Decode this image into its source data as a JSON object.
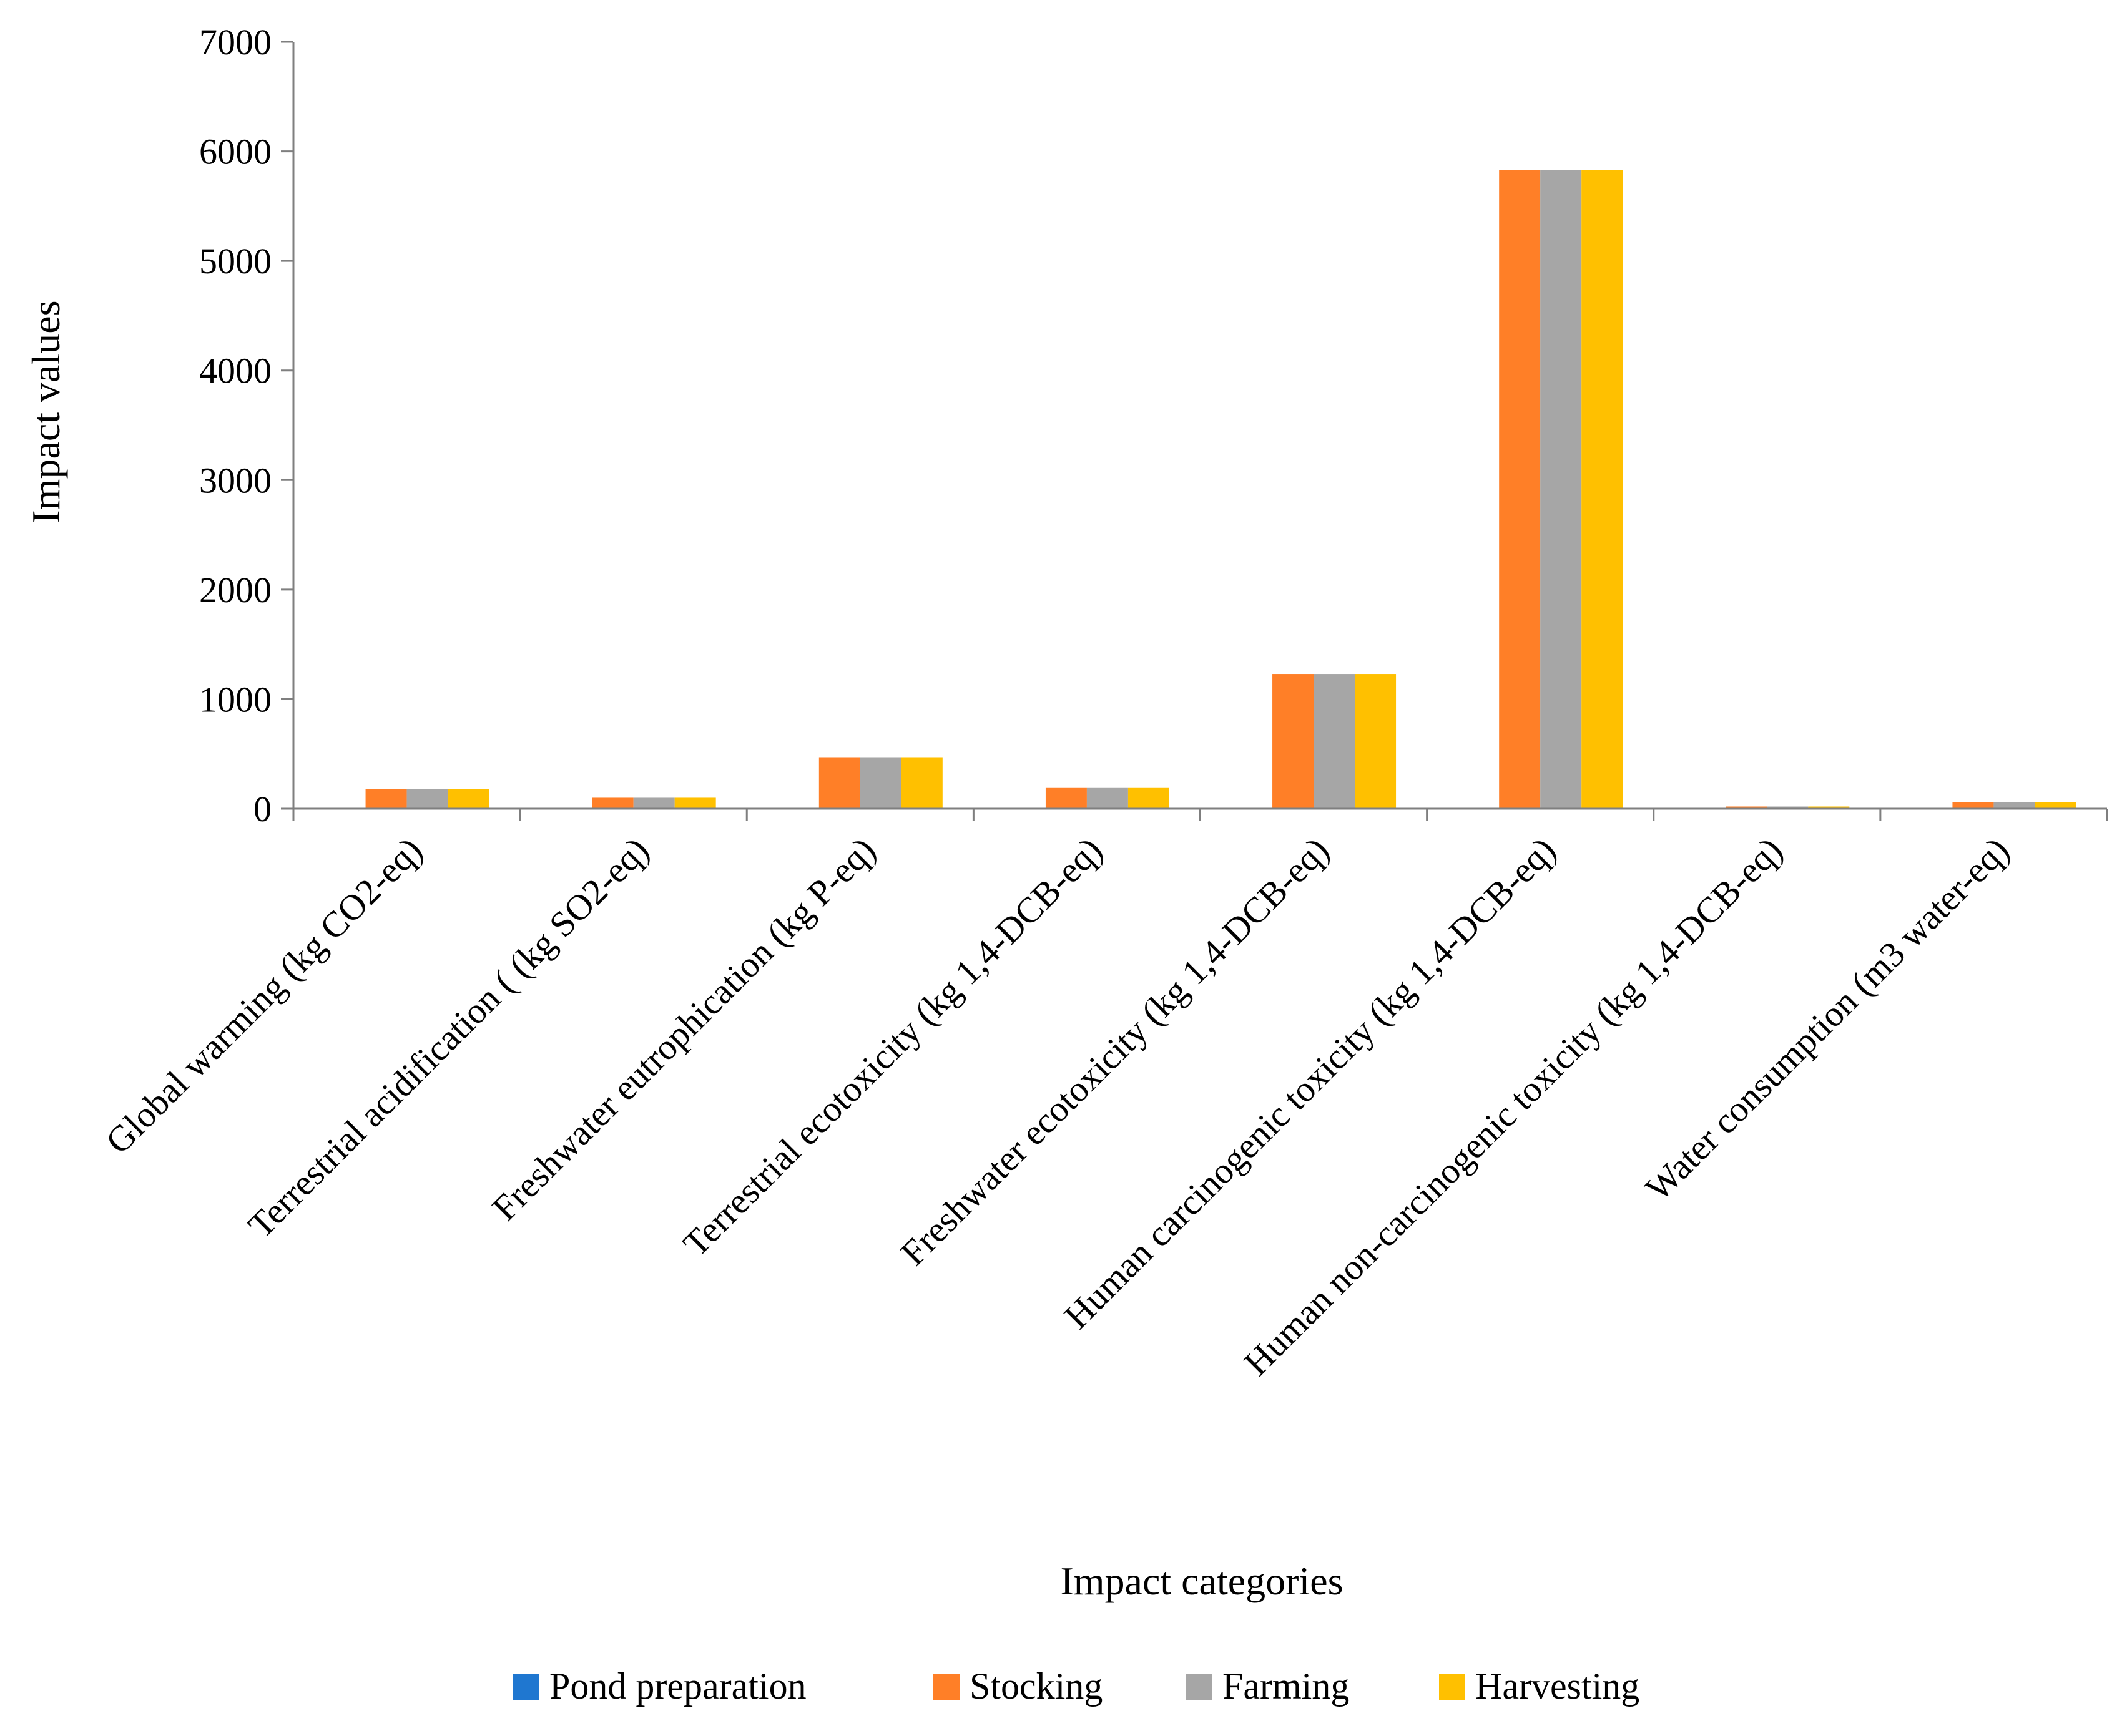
{
  "chart_data": {
    "type": "bar",
    "title": "",
    "xlabel": "Impact categories",
    "ylabel": "Impact values",
    "ylim": [
      0,
      7000
    ],
    "yticks": [
      0,
      1000,
      2000,
      3000,
      4000,
      5000,
      6000,
      7000
    ],
    "grid": false,
    "legend_position": "bottom",
    "categories": [
      "Global warming (kg CO2-eq)",
      "Terrestrial acidification ( (kg SO2-eq)",
      "Freshwater eutrophication  (kg P-eq)",
      "Terrestrial ecotoxicity  (kg 1,4-DCB-eq)",
      "Freshwater ecotoxicity  (kg 1,4-DCB-eq)",
      "Human carcinogenic toxicity  (kg 1,4-DCB-eq)",
      "Human non-carcinogenic toxicity (kg 1,4-DCB-eq)",
      "Water consumption (m3 water-eq)"
    ],
    "series": [
      {
        "name": "Pond preparation",
        "color": "#1f77d0",
        "values": [
          0,
          0,
          0,
          0,
          0,
          0,
          0,
          0
        ]
      },
      {
        "name": "Stocking",
        "color": "#ff7f27",
        "values": [
          180,
          100,
          470,
          195,
          1230,
          5830,
          20,
          60
        ]
      },
      {
        "name": "Farming",
        "color": "#a6a6a6",
        "values": [
          180,
          100,
          470,
          195,
          1230,
          5830,
          20,
          60
        ]
      },
      {
        "name": "Harvesting",
        "color": "#ffc000",
        "values": [
          180,
          100,
          470,
          195,
          1230,
          5830,
          20,
          60
        ]
      }
    ]
  }
}
